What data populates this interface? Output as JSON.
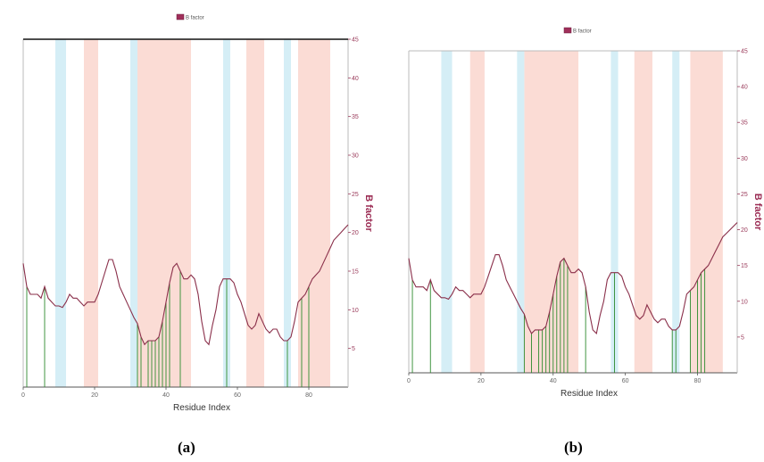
{
  "captions": [
    "(a)",
    "(b)"
  ],
  "chart_data": [
    {
      "type": "line",
      "panel": "(a)",
      "title": "",
      "xlabel": "Residue Index",
      "ylabel": "B factor",
      "legend": {
        "label": "B factor",
        "placement": "top-center",
        "color": "#a02f5a"
      },
      "xlim": [
        0,
        91
      ],
      "ylim": [
        0,
        45
      ],
      "xticks": [
        0,
        20,
        40,
        60,
        80
      ],
      "yticks": [
        5,
        10,
        15,
        20,
        25,
        30,
        35,
        40,
        45
      ],
      "y_axis_side": "right",
      "series": [
        {
          "name": "B factor",
          "color": "#8a2f4a",
          "x": [
            0,
            1,
            2,
            3,
            4,
            5,
            6,
            7,
            8,
            9,
            10,
            11,
            12,
            13,
            14,
            15,
            16,
            17,
            18,
            19,
            20,
            21,
            22,
            23,
            24,
            25,
            26,
            27,
            28,
            29,
            30,
            31,
            32,
            33,
            34,
            35,
            36,
            37,
            38,
            39,
            40,
            41,
            42,
            43,
            44,
            45,
            46,
            47,
            48,
            49,
            50,
            51,
            52,
            53,
            54,
            55,
            56,
            57,
            58,
            59,
            60,
            61,
            62,
            63,
            64,
            65,
            66,
            67,
            68,
            69,
            70,
            71,
            72,
            73,
            74,
            75,
            76,
            77,
            78,
            79,
            80,
            81,
            82,
            83,
            84,
            85,
            86,
            87,
            88,
            89,
            90,
            91
          ],
          "y": [
            16,
            13,
            12,
            12,
            12,
            11.5,
            13,
            11.5,
            11,
            10.5,
            10.5,
            10.3,
            11,
            12,
            11.5,
            11.5,
            11,
            10.5,
            11,
            11,
            11,
            12,
            13.5,
            15,
            16.5,
            16.5,
            15,
            13,
            12,
            11,
            10,
            9,
            8.2,
            6.5,
            5.5,
            6,
            6,
            6,
            6.5,
            8.5,
            11,
            13.5,
            15.5,
            16,
            15,
            14,
            14,
            14.5,
            14,
            12,
            8.5,
            6,
            5.5,
            8,
            10,
            13,
            14,
            14,
            14,
            13.5,
            12,
            11,
            9.5,
            8,
            7.5,
            8,
            9.5,
            8.5,
            7.5,
            7,
            7.5,
            7.5,
            6.5,
            6,
            6,
            6.5,
            8.5,
            11,
            11.5,
            12,
            13,
            14,
            14.5,
            15,
            16,
            17,
            18,
            19,
            19.5,
            20,
            20.5,
            21
          ]
        }
      ],
      "shaded_regions": [
        {
          "kind": "helix",
          "color": "#fbdcd5",
          "x": [
            17,
            21
          ]
        },
        {
          "kind": "helix",
          "color": "#fbdcd5",
          "x": [
            32,
            47
          ]
        },
        {
          "kind": "helix",
          "color": "#fbdcd5",
          "x": [
            62.5,
            67.5
          ]
        },
        {
          "kind": "helix",
          "color": "#fbdcd5",
          "x": [
            77,
            86
          ]
        },
        {
          "kind": "strand",
          "color": "#d5eef6",
          "x": [
            9,
            12
          ]
        },
        {
          "kind": "strand",
          "color": "#d5eef6",
          "x": [
            30,
            32
          ]
        },
        {
          "kind": "strand",
          "color": "#d5eef6",
          "x": [
            56,
            58
          ]
        },
        {
          "kind": "strand",
          "color": "#d5eef6",
          "x": [
            73,
            75
          ]
        }
      ],
      "contact_residues": [
        1,
        6,
        32,
        33,
        35,
        36,
        37,
        38,
        39,
        40,
        41,
        44,
        57,
        74,
        78,
        80
      ]
    },
    {
      "type": "line",
      "panel": "(b)",
      "title": "",
      "xlabel": "Residue Index",
      "ylabel": "B factor",
      "legend": {
        "label": "B factor",
        "placement": "top-center",
        "color": "#a02f5a"
      },
      "xlim": [
        0,
        91
      ],
      "ylim": [
        0,
        45
      ],
      "xticks": [
        0,
        20,
        40,
        60,
        80
      ],
      "yticks": [
        5,
        10,
        15,
        20,
        25,
        30,
        35,
        40,
        45
      ],
      "y_axis_side": "right",
      "series": [
        {
          "name": "B factor",
          "color": "#8a2f4a",
          "x": [
            0,
            1,
            2,
            3,
            4,
            5,
            6,
            7,
            8,
            9,
            10,
            11,
            12,
            13,
            14,
            15,
            16,
            17,
            18,
            19,
            20,
            21,
            22,
            23,
            24,
            25,
            26,
            27,
            28,
            29,
            30,
            31,
            32,
            33,
            34,
            35,
            36,
            37,
            38,
            39,
            40,
            41,
            42,
            43,
            44,
            45,
            46,
            47,
            48,
            49,
            50,
            51,
            52,
            53,
            54,
            55,
            56,
            57,
            58,
            59,
            60,
            61,
            62,
            63,
            64,
            65,
            66,
            67,
            68,
            69,
            70,
            71,
            72,
            73,
            74,
            75,
            76,
            77,
            78,
            79,
            80,
            81,
            82,
            83,
            84,
            85,
            86,
            87,
            88,
            89,
            90,
            91
          ],
          "y": [
            16,
            13,
            12,
            12,
            12,
            11.5,
            13,
            11.5,
            11,
            10.5,
            10.5,
            10.3,
            11,
            12,
            11.5,
            11.5,
            11,
            10.5,
            11,
            11,
            11,
            12,
            13.5,
            15,
            16.5,
            16.5,
            15,
            13,
            12,
            11,
            10,
            9,
            8.2,
            6.5,
            5.5,
            6,
            6,
            6,
            6.5,
            8.5,
            11,
            13.5,
            15.5,
            16,
            15,
            14,
            14,
            14.5,
            14,
            12,
            8.5,
            6,
            5.5,
            8,
            10,
            13,
            14,
            14,
            14,
            13.5,
            12,
            11,
            9.5,
            8,
            7.5,
            8,
            9.5,
            8.5,
            7.5,
            7,
            7.5,
            7.5,
            6.5,
            6,
            6,
            6.5,
            8.5,
            11,
            11.5,
            12,
            13,
            14,
            14.5,
            15,
            16,
            17,
            18,
            19,
            19.5,
            20,
            20.5,
            21
          ]
        }
      ],
      "shaded_regions": [
        {
          "kind": "helix",
          "color": "#fbdcd5",
          "x": [
            17,
            21
          ]
        },
        {
          "kind": "helix",
          "color": "#fbdcd5",
          "x": [
            32,
            47
          ]
        },
        {
          "kind": "helix",
          "color": "#fbdcd5",
          "x": [
            62.5,
            67.5
          ]
        },
        {
          "kind": "helix",
          "color": "#fbdcd5",
          "x": [
            78,
            87
          ]
        },
        {
          "kind": "strand",
          "color": "#d5eef6",
          "x": [
            9,
            12
          ]
        },
        {
          "kind": "strand",
          "color": "#d5eef6",
          "x": [
            30,
            32
          ]
        },
        {
          "kind": "strand",
          "color": "#d5eef6",
          "x": [
            56,
            58
          ]
        },
        {
          "kind": "strand",
          "color": "#d5eef6",
          "x": [
            73,
            75
          ]
        }
      ],
      "contact_residues": [
        1,
        6,
        32,
        34,
        36,
        37,
        38,
        39,
        40,
        41,
        42,
        43,
        44,
        49,
        57,
        73,
        74,
        78,
        80,
        81,
        82
      ]
    }
  ]
}
